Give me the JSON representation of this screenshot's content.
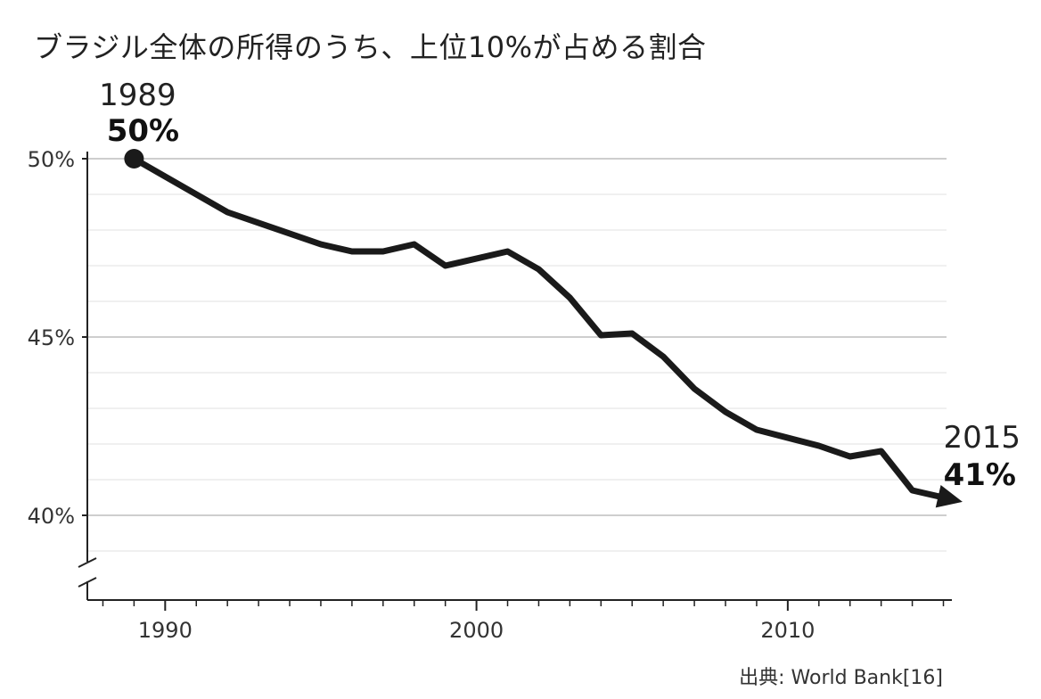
{
  "title": "ブラジル全体の所得のうち、上位10%が占める割合",
  "source": "出典: World Bank[16]",
  "chart_data": {
    "type": "line",
    "title": "ブラジル全体の所得のうち、上位10%が占める割合",
    "xlabel": "",
    "ylabel": "",
    "xlim": [
      1987.5,
      2015.1
    ],
    "ylim": [
      38.5,
      50.8
    ],
    "y_axis_break": true,
    "x_ticks": [
      {
        "value": 1990,
        "label": "1990"
      },
      {
        "value": 2000,
        "label": "2000"
      },
      {
        "value": 2010,
        "label": "2010"
      }
    ],
    "x_minor_ticks": [
      1988,
      1989,
      1991,
      1992,
      1993,
      1994,
      1995,
      1996,
      1997,
      1998,
      1999,
      2001,
      2002,
      2003,
      2004,
      2005,
      2006,
      2007,
      2008,
      2009,
      2011,
      2012,
      2013,
      2014,
      2015
    ],
    "y_ticks": [
      {
        "value": 50,
        "label": "50%"
      },
      {
        "value": 45,
        "label": "45%"
      },
      {
        "value": 40,
        "label": "40%"
      }
    ],
    "y_minor_grid": [
      39,
      41,
      42,
      43,
      44,
      46,
      47,
      48,
      49
    ],
    "series": [
      {
        "color": "#1a1a1a",
        "x": [
          1989,
          1990,
          1992,
          1995,
          1996,
          1997,
          1998,
          1999,
          2001,
          2002,
          2003,
          2004,
          2005,
          2006,
          2007,
          2008,
          2009,
          2011,
          2012,
          2013,
          2014,
          2015
        ],
        "y": [
          50.0,
          49.5,
          48.5,
          47.6,
          47.4,
          47.4,
          47.6,
          47.0,
          47.4,
          46.9,
          46.1,
          45.05,
          45.1,
          44.45,
          43.55,
          42.9,
          42.4,
          41.95,
          41.65,
          41.8,
          40.7,
          40.5
        ]
      }
    ],
    "annotations": [
      {
        "x": 1989,
        "y": 50.0,
        "year": "1989",
        "value": "50%",
        "marker": "dot"
      },
      {
        "x": 2015,
        "y": 40.5,
        "year": "2015",
        "value": "41%",
        "marker": "arrow"
      }
    ],
    "grid": true,
    "legend": "none"
  }
}
